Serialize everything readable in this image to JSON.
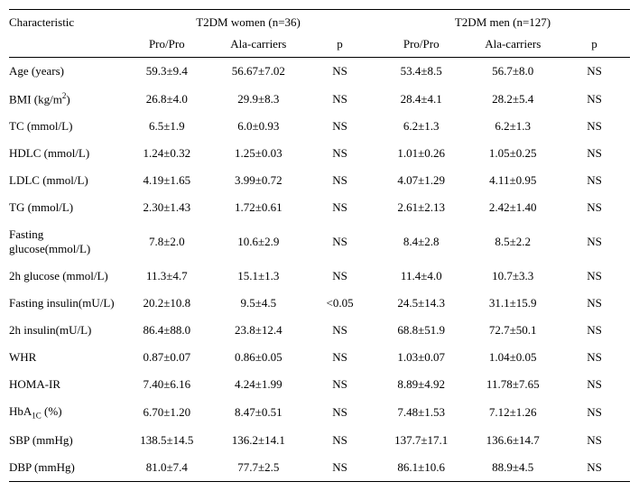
{
  "header": {
    "characteristic": "Characteristic",
    "group1": "T2DM women (n=36)",
    "group2": "T2DM men (n=127)",
    "sub": {
      "propro": "Pro/Pro",
      "ala": "Ala-carriers",
      "p": "p"
    }
  },
  "rows": [
    {
      "label": "Age (years)",
      "w_pp": "59.3±9.4",
      "w_ala": "56.67±7.02",
      "w_p": "NS",
      "m_pp": "53.4±8.5",
      "m_ala": "56.7±8.0",
      "m_p": "NS"
    },
    {
      "label": "BMI (kg/m²)",
      "w_pp": "26.8±4.0",
      "w_ala": "29.9±8.3",
      "w_p": "NS",
      "m_pp": "28.4±4.1",
      "m_ala": "28.2±5.4",
      "m_p": "NS"
    },
    {
      "label": "TC (mmol/L)",
      "w_pp": "6.5±1.9",
      "w_ala": "6.0±0.93",
      "w_p": "NS",
      "m_pp": "6.2±1.3",
      "m_ala": "6.2±1.3",
      "m_p": "NS"
    },
    {
      "label": "HDLC (mmol/L)",
      "w_pp": "1.24±0.32",
      "w_ala": "1.25±0.03",
      "w_p": "NS",
      "m_pp": "1.01±0.26",
      "m_ala": "1.05±0.25",
      "m_p": "NS"
    },
    {
      "label": "LDLC (mmol/L)",
      "w_pp": "4.19±1.65",
      "w_ala": "3.99±0.72",
      "w_p": "NS",
      "m_pp": "4.07±1.29",
      "m_ala": "4.11±0.95",
      "m_p": "NS"
    },
    {
      "label": "TG (mmol/L)",
      "w_pp": "2.30±1.43",
      "w_ala": "1.72±0.61",
      "w_p": "NS",
      "m_pp": "2.61±2.13",
      "m_ala": "2.42±1.40",
      "m_p": "NS"
    },
    {
      "label": "Fasting glucose(mmol/L)",
      "w_pp": "7.8±2.0",
      "w_ala": "10.6±2.9",
      "w_p": "NS",
      "m_pp": "8.4±2.8",
      "m_ala": "8.5±2.2",
      "m_p": "NS"
    },
    {
      "label": "2h glucose (mmol/L)",
      "w_pp": "11.3±4.7",
      "w_ala": "15.1±1.3",
      "w_p": "NS",
      "m_pp": "11.4±4.0",
      "m_ala": "10.7±3.3",
      "m_p": "NS"
    },
    {
      "label": "Fasting insulin(mU/L)",
      "w_pp": "20.2±10.8",
      "w_ala": "9.5±4.5",
      "w_p": "<0.05",
      "m_pp": "24.5±14.3",
      "m_ala": "31.1±15.9",
      "m_p": "NS"
    },
    {
      "label": "2h insulin(mU/L)",
      "w_pp": "86.4±88.0",
      "w_ala": "23.8±12.4",
      "w_p": "NS",
      "m_pp": "68.8±51.9",
      "m_ala": "72.7±50.1",
      "m_p": "NS"
    },
    {
      "label": "WHR",
      "w_pp": "0.87±0.07",
      "w_ala": "0.86±0.05",
      "w_p": "NS",
      "m_pp": "1.03±0.07",
      "m_ala": "1.04±0.05",
      "m_p": "NS"
    },
    {
      "label": "HOMA-IR",
      "w_pp": "7.40±6.16",
      "w_ala": "4.24±1.99",
      "w_p": "NS",
      "m_pp": "8.89±4.92",
      "m_ala": "11.78±7.65",
      "m_p": "NS"
    },
    {
      "label": "HbA1C (%)",
      "w_pp": "6.70±1.20",
      "w_ala": "8.47±0.51",
      "w_p": "NS",
      "m_pp": "7.48±1.53",
      "m_ala": "7.12±1.26",
      "m_p": "NS",
      "sub1c": true
    },
    {
      "label": "SBP (mmHg)",
      "w_pp": "138.5±14.5",
      "w_ala": "136.2±14.1",
      "w_p": "NS",
      "m_pp": "137.7±17.1",
      "m_ala": "136.6±14.7",
      "m_p": "NS"
    },
    {
      "label": "DBP (mmHg)",
      "w_pp": "81.0±7.4",
      "w_ala": "77.7±2.5",
      "w_p": "NS",
      "m_pp": "86.1±10.6",
      "m_ala": "88.9±4.5",
      "m_p": "NS"
    }
  ]
}
